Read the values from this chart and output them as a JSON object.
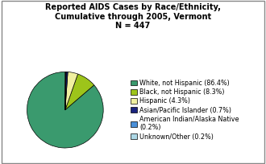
{
  "title": "Reported AIDS Cases by Race/Ethnicity,\nCumulative through 2005, Vermont\nN = 447",
  "slices": [
    86.4,
    8.3,
    4.3,
    0.7,
    0.2,
    0.2
  ],
  "colors": [
    "#3a9a6e",
    "#9dc41a",
    "#f0f0a0",
    "#1a237e",
    "#4a90d9",
    "#add8e6"
  ],
  "labels": [
    "White, not Hispanic (86.4%)",
    "Black, not Hispanic (8.3%)",
    "Hispanic (4.3%)",
    "Asian/Pacific Islander (0.7%)",
    "American Indian/Alaska Native\n(0.2%)",
    "Unknown/Other (0.2%)"
  ],
  "startangle": 90,
  "background_color": "#ffffff",
  "title_fontsize": 7.0,
  "legend_fontsize": 5.8
}
